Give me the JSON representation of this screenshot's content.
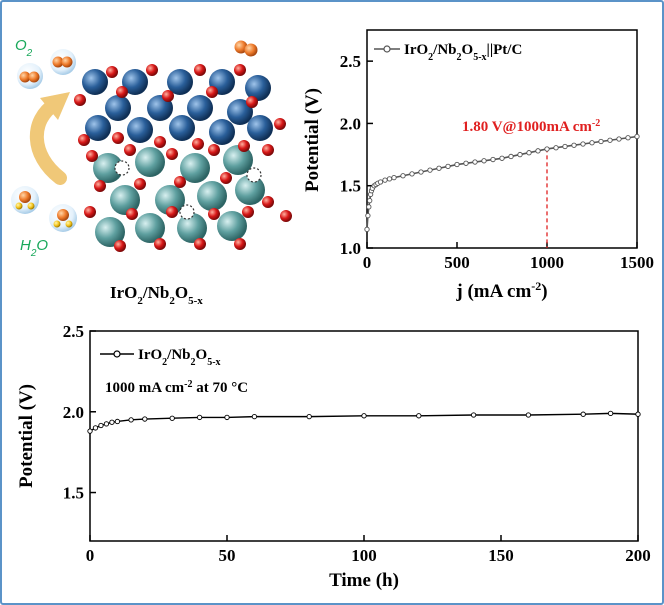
{
  "colors": {
    "frame": "#5b93c8",
    "annotation": "#e02020",
    "molecule_label": "#18a85a",
    "ir": "#2a5f9a",
    "nb": "#5fa0a0",
    "oxygen": "#d81818",
    "arrow": "#f0c878"
  },
  "illustration": {
    "molecule_top": "O",
    "molecule_top_sub": "2",
    "molecule_bottom": "H",
    "molecule_bottom_sub": "2",
    "molecule_bottom_tail": "O",
    "caption": {
      "a": "IrO",
      "b": "2",
      "c": "/Nb",
      "d": "2",
      "e": "O",
      "f": "5-x"
    },
    "icons": [
      "o2-molecule-icon",
      "h2o-molecule-icon",
      "curved-arrow-icon",
      "crystal-lattice-icon"
    ]
  },
  "chart_data": [
    {
      "type": "line",
      "legend": {
        "a": "IrO",
        "b": "2",
        "c": "/Nb",
        "d": "2",
        "e": "O",
        "f": "5-x",
        "g": "||Pt/C"
      },
      "legend_position": "top-left",
      "xlabel": {
        "a": "j (mA cm",
        "b": "-2",
        "c": ")"
      },
      "ylabel": "Potential (V)",
      "xlim": [
        0,
        1500
      ],
      "ylim": [
        1.0,
        2.75
      ],
      "xticks": [
        "0",
        "500",
        "1000",
        "1500"
      ],
      "yticks": [
        "1.0",
        "1.5",
        "2.0",
        "2.5"
      ],
      "annotation": {
        "a": "1.80 V@1000mA cm",
        "b": "-2",
        "x": 1000,
        "y": 1.8
      },
      "series": [
        {
          "x": [
            0,
            5,
            10,
            15,
            20,
            25,
            30,
            40,
            50,
            60,
            75,
            100,
            125,
            150,
            200,
            250,
            300,
            350,
            400,
            450,
            500,
            550,
            600,
            650,
            700,
            750,
            800,
            850,
            900,
            950,
            1000,
            1050,
            1100,
            1150,
            1200,
            1250,
            1300,
            1350,
            1400,
            1450,
            1500
          ],
          "y": [
            1.15,
            1.26,
            1.33,
            1.38,
            1.43,
            1.46,
            1.48,
            1.5,
            1.51,
            1.52,
            1.53,
            1.545,
            1.555,
            1.565,
            1.58,
            1.595,
            1.61,
            1.625,
            1.64,
            1.655,
            1.67,
            1.68,
            1.69,
            1.7,
            1.71,
            1.72,
            1.735,
            1.75,
            1.765,
            1.78,
            1.795,
            1.805,
            1.815,
            1.825,
            1.835,
            1.845,
            1.855,
            1.865,
            1.875,
            1.885,
            1.895
          ]
        }
      ]
    },
    {
      "type": "line",
      "legend": {
        "a": "IrO",
        "b": "2",
        "c": "/Nb",
        "d": "2",
        "e": "O",
        "f": "5-x"
      },
      "legend_position": "top-left",
      "condition": {
        "a": "1000 mA cm",
        "b": "-2",
        "c": " at 70 °C"
      },
      "xlabel": "Time (h)",
      "ylabel": "Potential (V)",
      "xlim": [
        0,
        200
      ],
      "ylim": [
        1.2,
        2.5
      ],
      "xticks": [
        "0",
        "50",
        "100",
        "150",
        "200"
      ],
      "yticks": [
        "1.5",
        "2.0",
        "2.5"
      ],
      "series": [
        {
          "x": [
            0,
            2,
            4,
            6,
            8,
            10,
            15,
            20,
            30,
            40,
            50,
            60,
            80,
            100,
            120,
            140,
            160,
            180,
            190,
            200
          ],
          "y": [
            1.88,
            1.9,
            1.915,
            1.925,
            1.935,
            1.94,
            1.95,
            1.955,
            1.96,
            1.965,
            1.965,
            1.97,
            1.97,
            1.975,
            1.975,
            1.98,
            1.98,
            1.985,
            1.99,
            1.985
          ]
        }
      ]
    }
  ]
}
